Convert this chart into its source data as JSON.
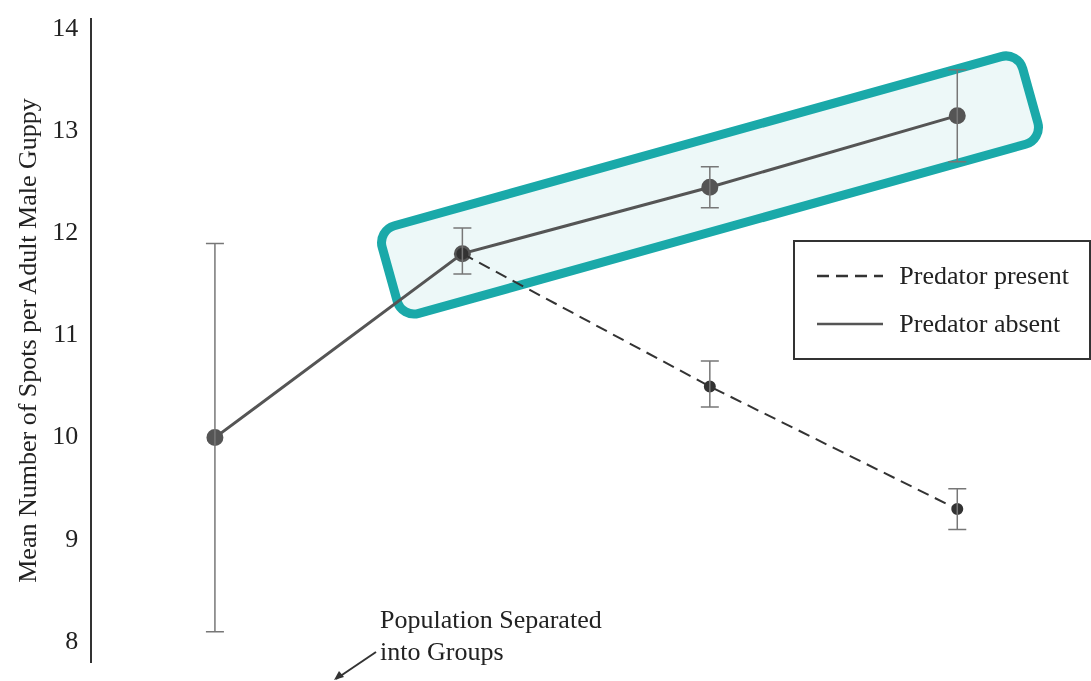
{
  "chart_data": {
    "type": "line",
    "ylabel": "Mean Number of Spots per Adult Male Guppy",
    "categories": [
      null,
      null,
      null,
      null
    ],
    "series": [
      {
        "name": "Predator present",
        "color": "#333333",
        "line_style": "dashed",
        "values": [
          null,
          11.8,
          10.5,
          9.3
        ],
        "errors": [
          null,
          null,
          [
            10.3,
            10.75
          ],
          [
            9.1,
            9.5
          ]
        ]
      },
      {
        "name": "Predator absent",
        "color": "#555555",
        "line_style": "solid",
        "values": [
          10.0,
          11.8,
          12.45,
          13.15
        ],
        "errors": [
          [
            8.1,
            11.9
          ],
          [
            11.6,
            12.05
          ],
          [
            12.25,
            12.65
          ],
          [
            12.7,
            13.6
          ]
        ]
      }
    ],
    "ylim": [
      7.8,
      14.1
    ],
    "yticks": [
      8,
      9,
      10,
      11,
      12,
      13,
      14
    ],
    "grid": false,
    "legend": "right",
    "marker": "circle",
    "tick_labels": "y",
    "annotations": [
      "Population Separated into Groups"
    ]
  }
}
